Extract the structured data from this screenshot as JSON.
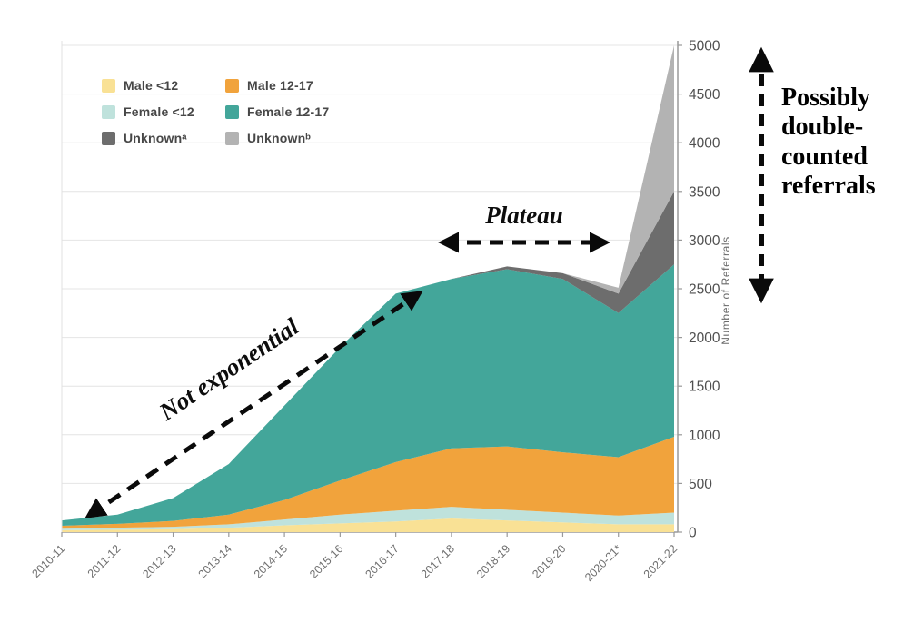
{
  "annotations": {
    "not_exponential": "Not exponential",
    "plateau": "Plateau",
    "double_counted": "Possibly double-counted referrals"
  },
  "chart_data": {
    "type": "area",
    "stacked": true,
    "title": "",
    "xlabel": "",
    "ylabel": "Number of Referrals",
    "ylim": [
      0,
      5000
    ],
    "ytick_step": 500,
    "grid": "horizontal",
    "legend_position": "top-left-inside",
    "categories": [
      "2010-11",
      "2011-12",
      "2012-13",
      "2013-14",
      "2014-15",
      "2015-16",
      "2016-17",
      "2017-18",
      "2018-19",
      "2019-20",
      "2020-21*",
      "2021-22"
    ],
    "series": [
      {
        "name": "Male <12",
        "color": "#F9E195",
        "values": [
          20,
          25,
          30,
          45,
          70,
          90,
          110,
          140,
          120,
          100,
          80,
          80
        ]
      },
      {
        "name": "Female <12",
        "color": "#BFE2DC",
        "values": [
          15,
          20,
          25,
          35,
          60,
          90,
          110,
          120,
          110,
          100,
          90,
          120
        ]
      },
      {
        "name": "Male 12-17",
        "color": "#F1A33C",
        "values": [
          30,
          40,
          60,
          100,
          200,
          350,
          500,
          600,
          650,
          620,
          600,
          780
        ]
      },
      {
        "name": "Female 12-17",
        "color": "#43A69A",
        "values": [
          55,
          95,
          235,
          520,
          970,
          1370,
          1730,
          1740,
          1820,
          1780,
          1480,
          1770
        ]
      },
      {
        "name": "Unknownᵃ",
        "color": "#6D6D6D",
        "values": [
          0,
          0,
          0,
          0,
          0,
          0,
          0,
          0,
          30,
          60,
          200,
          750
        ]
      },
      {
        "name": "Unknownᵇ",
        "color": "#B3B3B3",
        "values": [
          0,
          0,
          0,
          0,
          0,
          0,
          0,
          0,
          0,
          0,
          60,
          1500
        ]
      }
    ],
    "legend": [
      {
        "label": "Male <12",
        "color": "#F9E195"
      },
      {
        "label": "Male 12-17",
        "color": "#F1A33C"
      },
      {
        "label": "Female <12",
        "color": "#BFE2DC"
      },
      {
        "label": "Female 12-17",
        "color": "#43A69A"
      },
      {
        "label": "Unknownᵃ",
        "color": "#6D6D6D"
      },
      {
        "label": "Unknownᵇ",
        "color": "#B3B3B3"
      }
    ]
  }
}
